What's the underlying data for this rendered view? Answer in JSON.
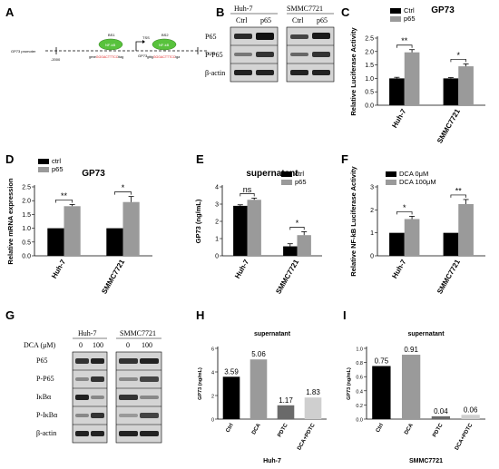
{
  "panels": {
    "A": {
      "letter": "A",
      "promoter_label": "GP73 promoter",
      "start_label": "-2000",
      "end_label": "+1000",
      "site1": {
        "name": "BS1",
        "protein": "NF-kB",
        "seq_prefix": "gene",
        "seq_core": "GGGACTTTCC",
        "seq_suffix": "ttag"
      },
      "site2": {
        "name": "BS2",
        "protein": "NF-kB",
        "seq_prefix": "gtttg",
        "seq_core": "GGGACTTTCC",
        "seq_suffix": "tga"
      },
      "tss_label": "TSS",
      "gp73_label": "GP73"
    },
    "B": {
      "letter": "B",
      "cell_lines": [
        "Huh-7",
        "SMMC7721"
      ],
      "lanes": [
        "Ctrl",
        "p65",
        "Ctrl",
        "p65"
      ],
      "rows": [
        "P65",
        "P-P65",
        "β-actin"
      ]
    },
    "G": {
      "letter": "G",
      "dca_label": "DCA (μM)",
      "cell_lines": [
        "Huh-7",
        "SMMC7721"
      ],
      "lanes": [
        "0",
        "100",
        "0",
        "100"
      ],
      "rows": [
        "P65",
        "P-P65",
        "IκBα",
        "P-IκBα",
        "β-actin"
      ]
    }
  },
  "chart_data": [
    {
      "id": "C",
      "letter": "C",
      "type": "bar",
      "title": "GP73",
      "ylabel": "Relative Luciferase Activity",
      "xlabel": "",
      "ylim": [
        0,
        2.5
      ],
      "yticks": [
        0.0,
        0.5,
        1.0,
        1.5,
        2.0,
        2.5
      ],
      "categories": [
        "Huh-7",
        "SMMC7721"
      ],
      "series": [
        {
          "name": "Ctrl",
          "color": "#000000",
          "values": [
            1.0,
            1.0
          ],
          "errors": [
            0.04,
            0.03
          ]
        },
        {
          "name": "p65",
          "color": "#9a9a9a",
          "values": [
            1.97,
            1.45
          ],
          "errors": [
            0.1,
            0.09
          ]
        }
      ],
      "significance": [
        "**",
        "*"
      ],
      "legend": "top-left"
    },
    {
      "id": "D",
      "letter": "D",
      "type": "bar",
      "title": "GP73",
      "ylabel": "Relative mRNA expression",
      "xlabel": "",
      "ylim": [
        0,
        2.5
      ],
      "yticks": [
        0.0,
        0.5,
        1.0,
        1.5,
        2.0,
        2.5
      ],
      "categories": [
        "Huh-7",
        "SMMC7721"
      ],
      "series": [
        {
          "name": "ctrl",
          "color": "#000000",
          "values": [
            1.0,
            1.0
          ],
          "errors": [
            0,
            0
          ]
        },
        {
          "name": "p65",
          "color": "#9a9a9a",
          "values": [
            1.8,
            1.95
          ],
          "errors": [
            0.06,
            0.2
          ]
        }
      ],
      "significance": [
        "**",
        "*"
      ],
      "legend": "top-left"
    },
    {
      "id": "E",
      "letter": "E",
      "type": "bar",
      "title": "supernatant",
      "ylabel": "GP73 (ng/mL)",
      "xlabel": "",
      "ylim": [
        0,
        4
      ],
      "yticks": [
        0,
        1,
        2,
        3,
        4
      ],
      "categories": [
        "Huh-7",
        "SMMC7721"
      ],
      "series": [
        {
          "name": "ctrl",
          "color": "#000000",
          "values": [
            2.9,
            0.55
          ],
          "errors": [
            0.06,
            0.15
          ]
        },
        {
          "name": "p65",
          "color": "#9a9a9a",
          "values": [
            3.25,
            1.2
          ],
          "errors": [
            0.1,
            0.2
          ]
        }
      ],
      "significance": [
        "ns",
        "*"
      ],
      "legend": "top-right"
    },
    {
      "id": "F",
      "letter": "F",
      "type": "bar",
      "title": "",
      "ylabel": "Relative NF-kB Luciferase Activity",
      "xlabel": "",
      "ylim": [
        0,
        3
      ],
      "yticks": [
        0,
        1,
        2,
        3
      ],
      "categories": [
        "Huh-7",
        "SMMC7721"
      ],
      "series": [
        {
          "name": "DCA 0μM",
          "color": "#000000",
          "values": [
            1.0,
            1.0
          ],
          "errors": [
            0,
            0
          ]
        },
        {
          "name": "DCA 100μM",
          "color": "#9a9a9a",
          "values": [
            1.6,
            2.25
          ],
          "errors": [
            0.12,
            0.2
          ]
        }
      ],
      "significance": [
        "*",
        "**"
      ],
      "legend": "top-left"
    },
    {
      "id": "H",
      "letter": "H",
      "type": "bar",
      "title": "supernatant",
      "ylabel": "GP73 (ng/mL)",
      "xlabel": "Huh-7",
      "ylim": [
        0,
        6
      ],
      "yticks": [
        0,
        2,
        4,
        6
      ],
      "categories": [
        "Ctrl",
        "DCA",
        "PDTC",
        "DCA+PDTC"
      ],
      "values": [
        3.59,
        5.06,
        1.17,
        1.83
      ],
      "value_labels": [
        "3.59",
        "5.06",
        "1.17",
        "1.83"
      ],
      "colors": [
        "#000000",
        "#9a9a9a",
        "#6a6a6a",
        "#cfcfcf"
      ]
    },
    {
      "id": "I",
      "letter": "I",
      "type": "bar",
      "title": "supernatant",
      "ylabel": "GP73 (ng/mL)",
      "xlabel": "SMMC7721",
      "ylim": [
        0,
        1.0
      ],
      "yticks": [
        0.0,
        0.2,
        0.4,
        0.6,
        0.8,
        1.0
      ],
      "categories": [
        "Ctrl",
        "DCA",
        "PDTC",
        "DCA+PDTC"
      ],
      "values": [
        0.75,
        0.91,
        0.04,
        0.06
      ],
      "value_labels": [
        "0.75",
        "0.91",
        "0.04",
        "0.06"
      ],
      "colors": [
        "#000000",
        "#9a9a9a",
        "#6a6a6a",
        "#cfcfcf"
      ]
    }
  ]
}
